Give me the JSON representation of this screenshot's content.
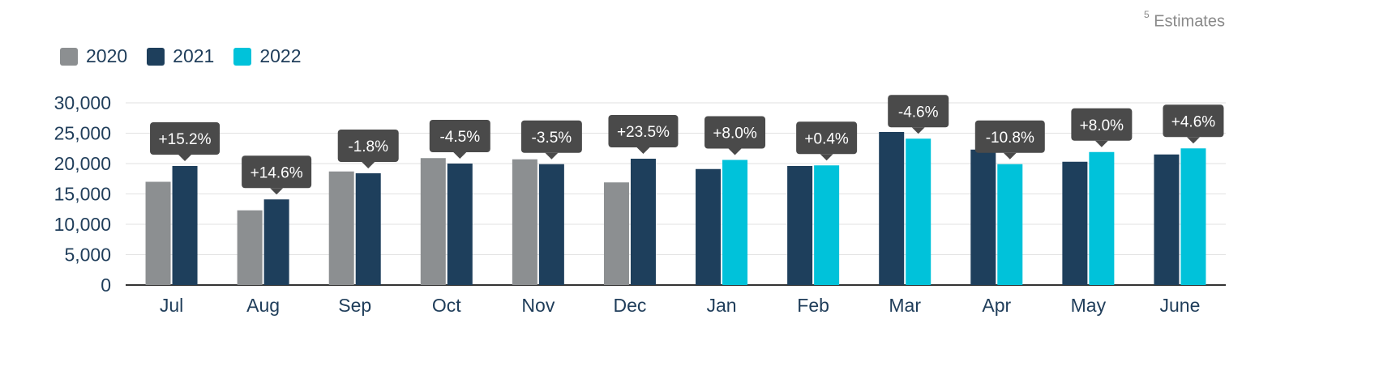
{
  "footnote": {
    "marker": "5",
    "text": "Estimates"
  },
  "colors": {
    "2020": "#8c8f91",
    "2021": "#1e3f5c",
    "2022": "#00c2da",
    "callout": "#4a4a4a",
    "axis_text": "#1f3d5a",
    "grid": "#e2e2e2"
  },
  "chart_data": {
    "type": "bar",
    "categories": [
      "Jul",
      "Aug",
      "Sep",
      "Oct",
      "Nov",
      "Dec",
      "Jan",
      "Feb",
      "Mar",
      "Apr",
      "May",
      "June"
    ],
    "series": [
      {
        "name": "2020",
        "values": [
          17000,
          12300,
          18700,
          20900,
          20700,
          16900,
          null,
          null,
          null,
          null,
          null,
          null
        ]
      },
      {
        "name": "2021",
        "values": [
          19600,
          14100,
          18400,
          20000,
          19900,
          20800,
          19100,
          19600,
          25200,
          22300,
          20300,
          21500
        ]
      },
      {
        "name": "2022",
        "values": [
          null,
          null,
          null,
          null,
          null,
          null,
          20600,
          19700,
          24100,
          19900,
          21900,
          22500
        ]
      }
    ],
    "change_labels": [
      "+15.2%",
      "+14.6%",
      "-1.8%",
      "-4.5%",
      "-3.5%",
      "+23.5%",
      "+8.0%",
      "+0.4%",
      "-4.6%",
      "-10.8%",
      "+8.0%",
      "+4.6%"
    ],
    "y_ticks": [
      "0",
      "5,000",
      "10,000",
      "15,000",
      "20,000",
      "25,000",
      "30,000"
    ],
    "ylim": [
      0,
      30000
    ],
    "grid": true,
    "legend_position": "top-left"
  }
}
